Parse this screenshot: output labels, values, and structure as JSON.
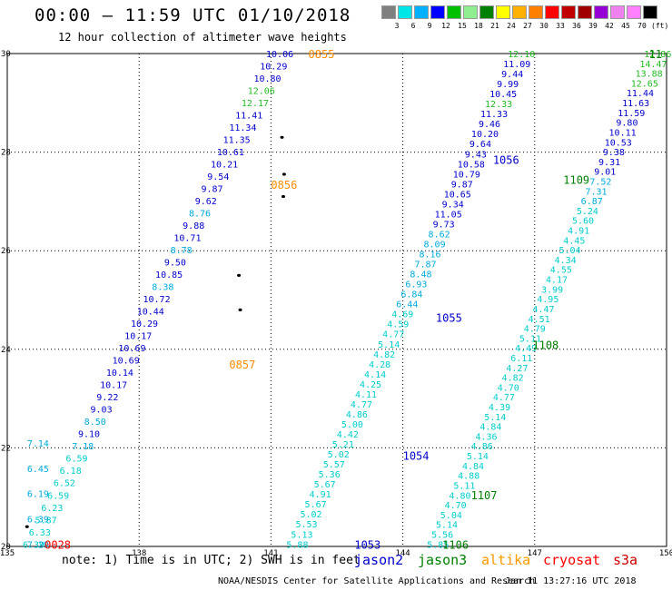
{
  "header": {
    "title": "00:00 – 11:59 UTC 01/10/2018",
    "subtitle": "12 hour collection of altimeter wave heights"
  },
  "scale": {
    "colors": [
      "#808080",
      "#00e5e5",
      "#00b0ff",
      "#0000ff",
      "#00c000",
      "#90ee90",
      "#008000",
      "#ffff00",
      "#ffb000",
      "#ff8000",
      "#ff0000",
      "#c00000",
      "#a00000",
      "#9400d3",
      "#ee82ee",
      "#ff80ff",
      "#000000"
    ],
    "labels": [
      "3",
      "6",
      "9",
      "12",
      "15",
      "18",
      "21",
      "24",
      "27",
      "30",
      "33",
      "36",
      "39",
      "42",
      "45",
      "70",
      "(ft)"
    ]
  },
  "axes": {
    "x_ticks": [
      "135",
      "138",
      "141",
      "144",
      "147",
      "150"
    ],
    "y_ticks": [
      "30",
      "28",
      "26",
      "24",
      "22",
      "20"
    ]
  },
  "map_data": {
    "lon_range": [
      135,
      150
    ],
    "lat_range": [
      20,
      30
    ],
    "tracks": [
      {
        "id": "track-0855",
        "color_main": "#0000cc",
        "lon_start": 141.2,
        "lat_start": 30.0,
        "lon_end": 135.6,
        "lat_end": 20.05,
        "values": [
          "10.06",
          "10.29",
          "10.80",
          "12.06",
          "12.17",
          "11.41",
          "11.34",
          "11.35",
          "10.61",
          "10.21",
          "9.54",
          "9.87",
          "9.62",
          "8.76",
          "9.88",
          "10.71",
          "8.78",
          "9.50",
          "10.85",
          "8.38",
          "10.72",
          "10.44",
          "10.29",
          "10.17",
          "10.69",
          "10.69",
          "10.14",
          "10.17",
          "9.22",
          "9.03",
          "8.50",
          "9.10",
          "7.18",
          "6.59",
          "6.18",
          "6.52",
          "6.59",
          "6.23",
          "5.87",
          "6.33",
          "6.39"
        ],
        "colors": [
          "#0000cc",
          "#0000cc",
          "#0000cc",
          "#22bb22",
          "#22bb22",
          "#0000cc",
          "#0000cc",
          "#0000cc",
          "#0000cc",
          "#0000cc",
          "#0000cc",
          "#0000cc",
          "#0000cc",
          "#00aadd",
          "#0000cc",
          "#0000cc",
          "#00aadd",
          "#0000cc",
          "#0000cc",
          "#00aadd",
          "#0000cc",
          "#0000cc",
          "#0000cc",
          "#0000cc",
          "#0000cc",
          "#0000cc",
          "#0000cc",
          "#0000cc",
          "#0000cc",
          "#0000cc",
          "#00aadd",
          "#0000cc",
          "#00aadd",
          "#00cccc",
          "#00cccc",
          "#00cccc",
          "#00cccc",
          "#00cccc",
          "#00cccc",
          "#00cccc",
          "#00cccc"
        ]
      },
      {
        "id": "track-0028",
        "lon_start": 135.7,
        "lat_start": 22.1,
        "lon_end": 135.7,
        "lat_end": 20.05,
        "values": [
          "7.14",
          "6.45",
          "6.19",
          "6.39",
          "7.29"
        ],
        "colors": [
          "#00aadd",
          "#00aadd",
          "#00aadd",
          "#00aadd",
          "#00aadd"
        ]
      },
      {
        "id": "track-1055",
        "lon_start": 146.7,
        "lat_start": 30.0,
        "lon_end": 141.6,
        "lat_end": 20.05,
        "values": [
          "12.10",
          "11.09",
          "9.44",
          "9.99",
          "10.45",
          "12.33",
          "11.33",
          "9.46",
          "10.20",
          "9.64",
          "9.43",
          "10.58",
          "10.79",
          "9.87",
          "10.65",
          "9.34",
          "11.05",
          "9.73",
          "8.62",
          "8.09",
          "8.16",
          "7.87",
          "8.48",
          "6.93",
          "6.84",
          "6.44",
          "4.69",
          "4.59",
          "4.77",
          "5.14",
          "4.82",
          "4.28",
          "4.14",
          "4.25",
          "4.11",
          "4.77",
          "4.86",
          "5.00",
          "4.42",
          "5.21",
          "5.02",
          "5.57",
          "5.36",
          "5.67",
          "4.91",
          "5.67",
          "5.02",
          "5.53",
          "5.13",
          "5.88"
        ],
        "colors": [
          "#22bb22",
          "#0000cc",
          "#0000cc",
          "#0000cc",
          "#0000cc",
          "#22bb22",
          "#0000cc",
          "#0000cc",
          "#0000cc",
          "#0000cc",
          "#0000cc",
          "#0000cc",
          "#0000cc",
          "#0000cc",
          "#0000cc",
          "#0000cc",
          "#0000cc",
          "#0000cc",
          "#00aadd",
          "#00aadd",
          "#00aadd",
          "#00aadd",
          "#00aadd",
          "#00aadd",
          "#00aadd",
          "#00aadd",
          "#00cccc",
          "#00cccc",
          "#00cccc",
          "#00cccc",
          "#00cccc",
          "#00cccc",
          "#00cccc",
          "#00cccc",
          "#00cccc",
          "#00cccc",
          "#00cccc",
          "#00cccc",
          "#00cccc",
          "#00cccc",
          "#00cccc",
          "#00cccc",
          "#00cccc",
          "#00cccc",
          "#00cccc",
          "#00cccc",
          "#00cccc",
          "#00cccc",
          "#00cccc",
          "#00cccc"
        ]
      },
      {
        "id": "track-1106",
        "lon_start": 149.8,
        "lat_start": 30.0,
        "lon_end": 144.8,
        "lat_end": 20.05,
        "values": [
          "12.86",
          "14.47",
          "13.88",
          "12.65",
          "11.44",
          "11.63",
          "11.59",
          "9.80",
          "10.11",
          "10.53",
          "9.38",
          "9.31",
          "9.01",
          "7.52",
          "7.31",
          "6.87",
          "5.24",
          "5.60",
          "4.91",
          "4.45",
          "5.04",
          "4.34",
          "4.55",
          "4.17",
          "3.99",
          "4.95",
          "4.47",
          "4.51",
          "4.79",
          "5.11",
          "4.49",
          "6.11",
          "4.27",
          "4.82",
          "4.70",
          "4.77",
          "4.39",
          "5.14",
          "4.84",
          "4.36",
          "4.86",
          "5.14",
          "4.84",
          "4.88",
          "5.11",
          "4.80",
          "4.70",
          "5.04",
          "5.14",
          "5.56",
          "5.85"
        ],
        "colors": [
          "#22bb22",
          "#22bb22",
          "#22bb22",
          "#22bb22",
          "#0000cc",
          "#0000cc",
          "#0000cc",
          "#0000cc",
          "#0000cc",
          "#0000cc",
          "#0000cc",
          "#0000cc",
          "#0000cc",
          "#00aadd",
          "#00aadd",
          "#00aadd",
          "#00cccc",
          "#00cccc",
          "#00cccc",
          "#00cccc",
          "#00cccc",
          "#00cccc",
          "#00cccc",
          "#00cccc",
          "#00cccc",
          "#00cccc",
          "#00cccc",
          "#00cccc",
          "#00cccc",
          "#00cccc",
          "#00cccc",
          "#00cccc",
          "#00cccc",
          "#00cccc",
          "#00cccc",
          "#00cccc",
          "#00cccc",
          "#00cccc",
          "#00cccc",
          "#00cccc",
          "#00cccc",
          "#00cccc",
          "#00cccc",
          "#00cccc",
          "#00cccc",
          "#00cccc",
          "#00cccc",
          "#00cccc",
          "#00cccc",
          "#00cccc",
          "#00cccc"
        ]
      }
    ],
    "time_labels": [
      {
        "text": "0855",
        "color": "#ff8c00",
        "lon": 141.85,
        "lat": 30.0
      },
      {
        "text": "0856",
        "color": "#ff8c00",
        "lon": 141.0,
        "lat": 27.35
      },
      {
        "text": "0857",
        "color": "#ff8c00",
        "lon": 140.05,
        "lat": 23.7
      },
      {
        "text": "0028",
        "color": "#ff0000",
        "lon": 135.85,
        "lat": 20.05
      },
      {
        "text": "1056",
        "color": "#0000cc",
        "lon": 146.05,
        "lat": 27.85
      },
      {
        "text": "1055",
        "color": "#0000cc",
        "lon": 144.75,
        "lat": 24.65
      },
      {
        "text": "1054",
        "color": "#0000cc",
        "lon": 144.0,
        "lat": 21.85
      },
      {
        "text": "1053",
        "color": "#0000cc",
        "lon": 142.9,
        "lat": 20.05
      },
      {
        "text": "1109",
        "color": "#008000",
        "lon": 147.65,
        "lat": 27.45
      },
      {
        "text": "1108",
        "color": "#008000",
        "lon": 146.95,
        "lat": 24.1
      },
      {
        "text": "1107",
        "color": "#008000",
        "lon": 145.55,
        "lat": 21.05
      },
      {
        "text": "1106",
        "color": "#008000",
        "lon": 144.9,
        "lat": 20.05
      },
      {
        "text": "11",
        "color": "#008000",
        "lon": 149.6,
        "lat": 30.0
      }
    ],
    "islands": [
      {
        "lon": 141.25,
        "lat": 28.3
      },
      {
        "lon": 141.3,
        "lat": 27.55
      },
      {
        "lon": 141.28,
        "lat": 27.1
      },
      {
        "lon": 140.27,
        "lat": 25.5
      },
      {
        "lon": 140.3,
        "lat": 24.8
      },
      {
        "lon": 135.45,
        "lat": 20.4
      }
    ]
  },
  "footer": {
    "note": "note: 1) Time is in UTC; 2) SWH is in feet",
    "satellites": [
      {
        "name": "jason2",
        "color": "#0000cc"
      },
      {
        "name": "jason3",
        "color": "#008000"
      },
      {
        "name": "altika",
        "color": "#ff9900"
      },
      {
        "name": "cryosat",
        "color": "#ff0000"
      },
      {
        "name": "s3a",
        "color": "#cc0000"
      }
    ],
    "credit": "NOAA/NESDIS Center for Satellite Applications and Research",
    "timestamp": "Jan 11 13:27:16 UTC 2018"
  }
}
